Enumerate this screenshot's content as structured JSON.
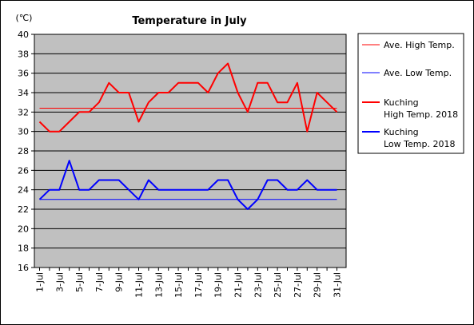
{
  "chart_data": {
    "type": "line",
    "title": "Temperature in July",
    "unit_label": "(℃)",
    "xlabel": "",
    "ylabel": "",
    "ylim": [
      16,
      40
    ],
    "yticks": [
      16,
      18,
      20,
      22,
      24,
      26,
      28,
      30,
      32,
      34,
      36,
      38,
      40
    ],
    "x_tick_labels": [
      "1-Jul",
      "3-Jul",
      "5-Jul",
      "7-Jul",
      "9-Jul",
      "11-Jul",
      "13-Jul",
      "15-Jul",
      "17-Jul",
      "19-Jul",
      "21-Jul",
      "23-Jul",
      "25-Jul",
      "27-Jul",
      "29-Jul",
      "31-Jul"
    ],
    "days": 31,
    "grid": true,
    "background": "#c0c0c0",
    "legend_position": "right",
    "series": [
      {
        "name": "Ave. High Temp.",
        "color": "#ff0000",
        "width": 1,
        "values": [
          32.4,
          32.4,
          32.4,
          32.4,
          32.4,
          32.4,
          32.4,
          32.4,
          32.4,
          32.4,
          32.4,
          32.4,
          32.4,
          32.4,
          32.4,
          32.4,
          32.4,
          32.4,
          32.4,
          32.4,
          32.4,
          32.4,
          32.4,
          32.4,
          32.4,
          32.4,
          32.4,
          32.4,
          32.4,
          32.4,
          32.4
        ]
      },
      {
        "name": "Ave. Low Temp.",
        "color": "#0000ff",
        "width": 1,
        "values": [
          23,
          23,
          23,
          23,
          23,
          23,
          23,
          23,
          23,
          23,
          23,
          23,
          23,
          23,
          23,
          23,
          23,
          23,
          23,
          23,
          23,
          23,
          23,
          23,
          23,
          23,
          23,
          23,
          23,
          23,
          23
        ]
      },
      {
        "name": "Kuching High Temp. 2018",
        "name_lines": [
          "Kuching",
          "High Temp. 2018"
        ],
        "color": "#ff0000",
        "width": 2,
        "values": [
          31,
          30,
          30,
          31,
          32,
          32,
          33,
          35,
          34,
          34,
          31,
          33,
          34,
          34,
          35,
          35,
          35,
          34,
          36,
          37,
          34,
          32,
          35,
          35,
          33,
          33,
          35,
          30,
          34,
          33,
          32
        ]
      },
      {
        "name": "Kuching Low Temp. 2018",
        "name_lines": [
          "Kuching",
          "Low Temp. 2018"
        ],
        "color": "#0000ff",
        "width": 2,
        "values": [
          23,
          24,
          24,
          27,
          24,
          24,
          25,
          25,
          25,
          24,
          23,
          25,
          24,
          24,
          24,
          24,
          24,
          24,
          25,
          25,
          23,
          22,
          23,
          25,
          25,
          24,
          24,
          25,
          24,
          24,
          24
        ]
      }
    ]
  }
}
